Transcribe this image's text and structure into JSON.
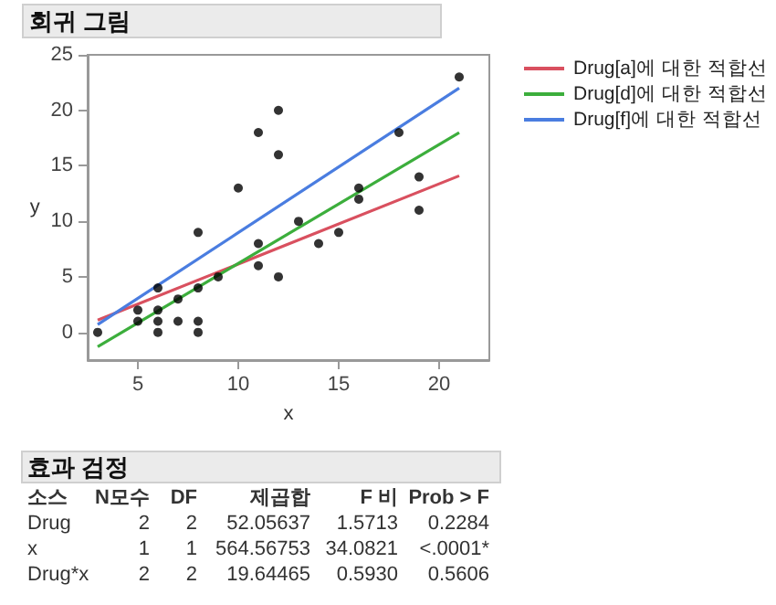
{
  "chart_data": {
    "type": "scatter",
    "title": "회귀 그림",
    "xlabel": "x",
    "ylabel": "y",
    "xlim": [
      2.5,
      22.5
    ],
    "ylim": [
      -2.5,
      25
    ],
    "xticks": [
      5,
      10,
      15,
      20
    ],
    "yticks": [
      0,
      5,
      10,
      15,
      20,
      25
    ],
    "grid": false,
    "legend": "top right",
    "series": [
      {
        "color": "#000000",
        "marker": "circle",
        "x": [
          3,
          5,
          5,
          6,
          6,
          6,
          6,
          7,
          7,
          8,
          8,
          8,
          8,
          9,
          10,
          11,
          11,
          11,
          12,
          12,
          12,
          13,
          14,
          15,
          16,
          16,
          18,
          19,
          19,
          21
        ],
        "values": [
          0,
          1,
          2,
          0,
          1,
          2,
          4,
          1,
          3,
          0,
          1,
          4,
          9,
          5,
          13,
          6,
          8,
          18,
          5,
          16,
          20,
          10,
          8,
          9,
          12,
          13,
          18,
          11,
          14,
          23
        ]
      },
      {
        "type": "line",
        "name": "Drug[a]에 대한 적합선",
        "color": "#d9505f",
        "marker": "none",
        "x": [
          3,
          21
        ],
        "values": [
          1.1,
          14.1
        ]
      },
      {
        "type": "line",
        "name": "Drug[d]에 대한 적합선",
        "color": "#3cae3c",
        "marker": "none",
        "x": [
          3,
          21
        ],
        "values": [
          -1.3,
          18
        ]
      },
      {
        "type": "line",
        "name": "Drug[f]에 대한 적합선",
        "color": "#4a7de0",
        "marker": "none",
        "x": [
          3,
          21
        ],
        "values": [
          0.7,
          22
        ]
      }
    ],
    "annotations": [
      "효과 검정",
      "소스\tN모수\tDF\t제곱합\tF 비\tProb > F",
      "Drug\t2\t2\t52.05637\t1.5713\t0.2284",
      "x\t1\t1\t564.56753\t34.0821\t<.0001*",
      "Drug*x\t2\t2\t19.64465\t0.5930\t0.5606"
    ]
  }
}
